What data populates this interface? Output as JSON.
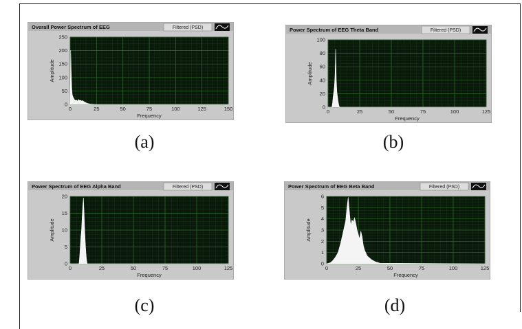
{
  "chart_data": [
    {
      "type": "area",
      "title": "Overall Power Spectrum of EEG",
      "legend": "Filtered (PSD)",
      "xlabel": "Frequency",
      "ylabel": "Amplitude",
      "xlim": [
        0,
        150
      ],
      "ylim": [
        0,
        250
      ],
      "xticks": [
        0,
        25,
        50,
        75,
        100,
        125,
        150
      ],
      "yticks": [
        0,
        50,
        100,
        150,
        200,
        250
      ],
      "caption": "(a)",
      "grid": true,
      "background": "#0a1a0a",
      "series": [
        {
          "x": [
            0,
            0.5,
            1,
            1.5,
            2,
            3,
            4,
            5,
            6,
            7,
            8,
            9,
            10,
            11,
            12,
            13,
            14,
            15,
            17,
            20,
            25,
            150
          ],
          "values": [
            5,
            200,
            120,
            60,
            35,
            25,
            18,
            14,
            16,
            12,
            18,
            14,
            15,
            12,
            14,
            10,
            8,
            6,
            3,
            1,
            0,
            0
          ]
        }
      ]
    },
    {
      "type": "area",
      "title": "Power Spectrum of EEG Theta Band",
      "legend": "Filtered (PSD)",
      "xlabel": "Frequency",
      "ylabel": "Amplitude",
      "xlim": [
        0,
        125
      ],
      "ylim": [
        0,
        100
      ],
      "xticks": [
        0,
        25,
        50,
        75,
        100,
        125
      ],
      "yticks": [
        0,
        20,
        40,
        60,
        80,
        100
      ],
      "caption": "(b)",
      "grid": true,
      "background": "#0a1a0a",
      "series": [
        {
          "x": [
            0,
            3,
            3.5,
            4,
            4.5,
            5,
            5.5,
            6,
            6.5,
            7,
            7.5,
            8,
            8.5,
            9,
            125
          ],
          "values": [
            0,
            0,
            5,
            15,
            22,
            30,
            45,
            86,
            40,
            22,
            15,
            8,
            3,
            0,
            0
          ]
        }
      ]
    },
    {
      "type": "area",
      "title": "Power Spectrum of EEG Alpha Band",
      "legend": "Filtered (PSD)",
      "xlabel": "Frequency",
      "ylabel": "Amplitude",
      "xlim": [
        0,
        125
      ],
      "ylim": [
        0,
        20
      ],
      "xticks": [
        0,
        25,
        50,
        75,
        100,
        125
      ],
      "yticks": [
        0,
        5,
        10,
        15,
        20
      ],
      "caption": "(c)",
      "grid": true,
      "background": "#0a1a0a",
      "series": [
        {
          "x": [
            0,
            7,
            7.5,
            8,
            8.5,
            9,
            9.5,
            10,
            10.5,
            11,
            11.5,
            12,
            12.5,
            13,
            13.5,
            125
          ],
          "values": [
            0,
            0,
            2,
            5,
            8,
            10,
            14,
            17,
            19.5,
            15,
            10,
            6,
            3,
            1,
            0,
            0
          ]
        }
      ]
    },
    {
      "type": "area",
      "title": "Power Spectrum of EEG Beta Band",
      "legend": "Filtered (PSD)",
      "xlabel": "Frequency",
      "ylabel": "Amplitude",
      "xlim": [
        0,
        125
      ],
      "ylim": [
        0,
        6
      ],
      "xticks": [
        0,
        25,
        50,
        75,
        100,
        125
      ],
      "yticks": [
        0,
        1,
        2,
        3,
        4,
        5,
        6
      ],
      "caption": "(d)",
      "grid": true,
      "background": "#0a1a0a",
      "series": [
        {
          "x": [
            0,
            3,
            5,
            7,
            9,
            10,
            11,
            12,
            13,
            14,
            15,
            16,
            17,
            18,
            19,
            20,
            21,
            22,
            23,
            24,
            25,
            26,
            27,
            28,
            29,
            30,
            32,
            35,
            38,
            42,
            125
          ],
          "values": [
            0,
            0.1,
            0.3,
            0.6,
            1.0,
            1.4,
            1.8,
            2.3,
            2.8,
            3.3,
            3.8,
            5.0,
            5.9,
            4.6,
            3.4,
            3.9,
            3.7,
            4.1,
            3.6,
            3.0,
            2.6,
            2.2,
            2.9,
            2.4,
            1.6,
            1.2,
            0.7,
            0.4,
            0.2,
            0.05,
            0
          ]
        }
      ]
    }
  ]
}
